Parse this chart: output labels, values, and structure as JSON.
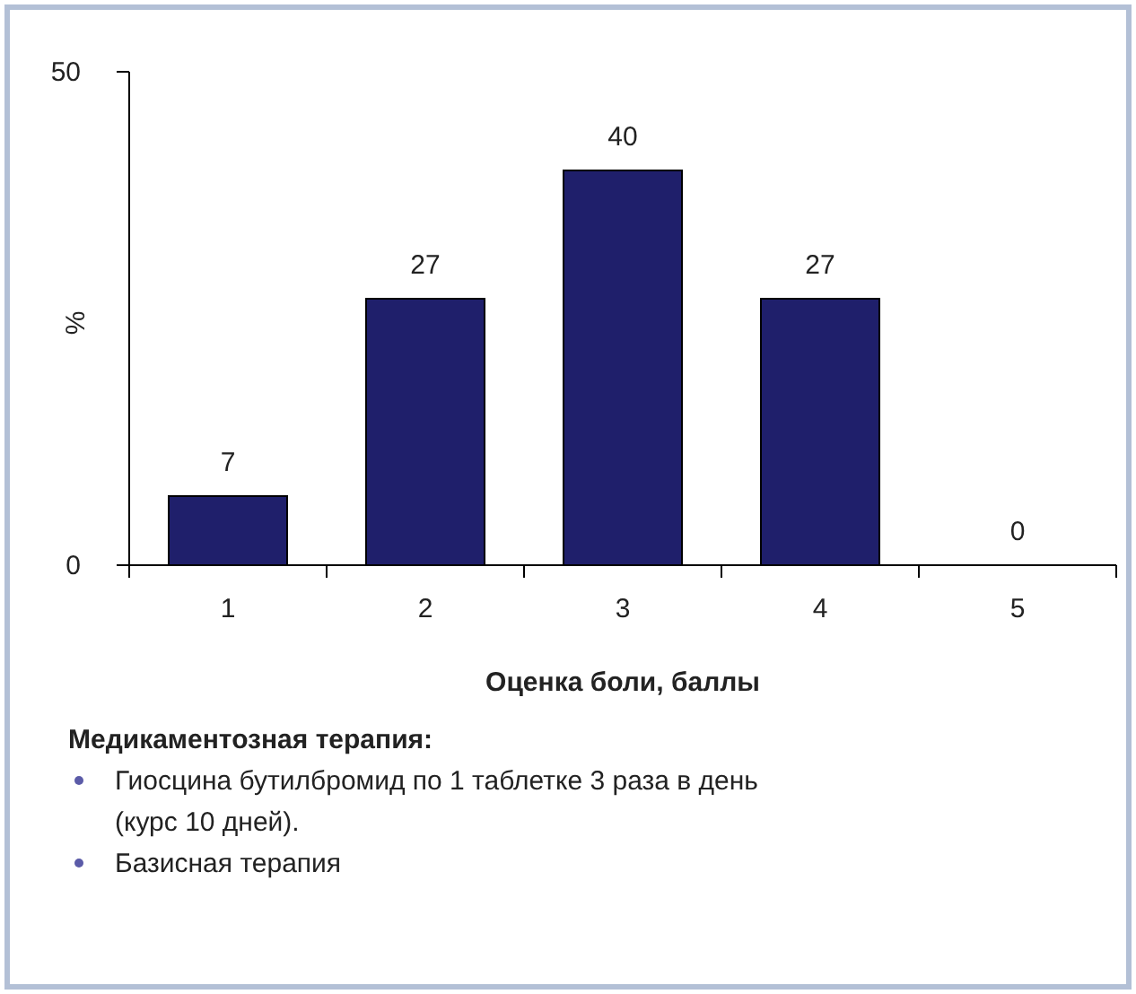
{
  "chart_data": {
    "type": "bar",
    "xlabel": "Оценка боли, баллы",
    "ylabel": "%",
    "categories": [
      "1",
      "2",
      "3",
      "4",
      "5"
    ],
    "values": [
      7,
      27,
      40,
      27,
      0
    ],
    "color": "#1f1f6b",
    "data_labels": true,
    "ylim": [
      0,
      50
    ],
    "yticks": [
      0,
      50
    ],
    "grid": false,
    "annotations": [
      "Медикаментозная терапия:",
      "Гиосцина бутилбромид по 1 таблетке 3 раза в день (курс 10 дней).",
      "Базисная терапия"
    ]
  }
}
